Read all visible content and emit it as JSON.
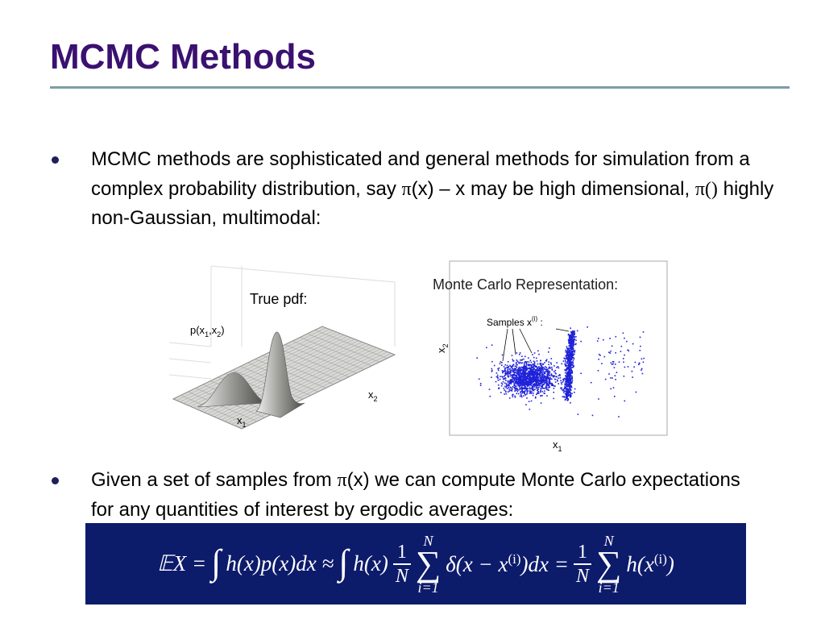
{
  "title": "MCMC Methods",
  "bullets": [
    {
      "segments": [
        "MCMC methods are sophisticated and general methods for simulation from a complex probability distribution, say ",
        "π",
        "(x) – x may be high dimensional, ",
        "π()",
        " highly non-Gaussian, multimodal:"
      ]
    },
    {
      "segments": [
        "Given a set of samples from ",
        "π",
        "(x) we can compute Monte Carlo expectations for any quantities of interest by ergodic averages:"
      ]
    }
  ],
  "left_figure": {
    "title": "True pdf:",
    "z_label": [
      "p(x",
      "1",
      ",x",
      "2",
      ")"
    ],
    "x1_label": [
      "x",
      "1"
    ],
    "x2_label": [
      "x",
      "2"
    ]
  },
  "right_figure": {
    "title": "Monte Carlo Representation:",
    "samples_label": [
      "Samples x",
      "(i)",
      " :"
    ],
    "y_label": [
      "x",
      "2"
    ],
    "x_label": [
      "x",
      "1"
    ]
  },
  "formula": {
    "parts": [
      "𝔼X =",
      "∫",
      "h(x)p(x)dx ≈",
      "∫",
      "h(x)",
      "1",
      "N",
      "N",
      "∑",
      "i=1",
      "δ(x − x",
      "(i)",
      ")dx =",
      "1",
      "N",
      "N",
      "∑",
      "i=1",
      "h(x",
      "(i)",
      ")"
    ]
  }
}
